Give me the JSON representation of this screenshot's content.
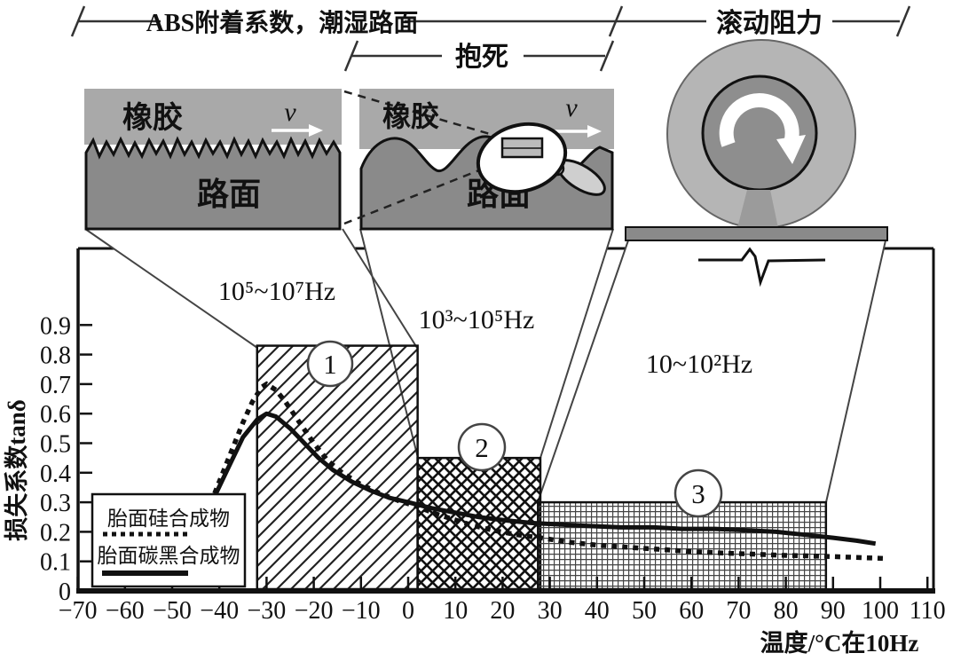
{
  "figure": {
    "brackets": {
      "abs_label": "ABS附着系数，潮湿路面",
      "lock_label": "抱死",
      "rolling_label": "滚动阻力"
    },
    "panel_left": {
      "rubber": "橡胶",
      "road": "路面",
      "velocity": "v"
    },
    "panel_middle": {
      "rubber": "橡胶",
      "road": "路面",
      "velocity": "v"
    },
    "legend": {
      "silica_label": "胎面硅合成物",
      "carbon_label": "胎面碳黑合成物"
    }
  },
  "chart_data": {
    "type": "line",
    "title": "",
    "xlabel": "温度/°C在10Hz",
    "ylabel": "损失系数tanδ",
    "xlim": [
      -70,
      110
    ],
    "ylim": [
      0,
      0.9
    ],
    "grid": false,
    "x_ticks": [
      -70,
      -60,
      -50,
      -40,
      -30,
      -20,
      -10,
      0,
      10,
      20,
      30,
      40,
      50,
      60,
      70,
      80,
      90,
      100,
      110
    ],
    "y_ticks": [
      0,
      0.1,
      0.2,
      0.3,
      0.4,
      0.5,
      0.6,
      0.7,
      0.8,
      0.9
    ],
    "regions": [
      {
        "label": "1",
        "freq": "10⁵~10⁷Hz",
        "temp_range": [
          -32,
          2
        ],
        "tan_delta_top": 0.83
      },
      {
        "label": "2",
        "freq": "10³~10⁵Hz",
        "temp_range": [
          2,
          28
        ],
        "tan_delta_top": 0.45
      },
      {
        "label": "3",
        "freq": "10~10²Hz",
        "temp_range": [
          27.5,
          88.5
        ],
        "tan_delta_top": 0.3
      }
    ],
    "series": [
      {
        "name": "胎面硅合成物",
        "style": "dotted",
        "points": [
          [
            -41,
            0.33
          ],
          [
            -38,
            0.45
          ],
          [
            -35,
            0.57
          ],
          [
            -33,
            0.64
          ],
          [
            -31,
            0.69
          ],
          [
            -30,
            0.7
          ],
          [
            -28,
            0.68
          ],
          [
            -26,
            0.64
          ],
          [
            -23,
            0.57
          ],
          [
            -20,
            0.5
          ],
          [
            -17,
            0.44
          ],
          [
            -14,
            0.4
          ],
          [
            -10,
            0.36
          ],
          [
            -6,
            0.33
          ],
          [
            -2,
            0.305
          ],
          [
            2,
            0.285
          ],
          [
            6,
            0.26
          ],
          [
            10,
            0.24
          ],
          [
            14,
            0.22
          ],
          [
            18,
            0.205
          ],
          [
            23,
            0.19
          ],
          [
            28,
            0.18
          ],
          [
            34,
            0.165
          ],
          [
            40,
            0.155
          ],
          [
            47,
            0.147
          ],
          [
            54,
            0.14
          ],
          [
            60,
            0.133
          ],
          [
            67,
            0.128
          ],
          [
            74,
            0.124
          ],
          [
            80,
            0.12
          ],
          [
            86,
            0.118
          ],
          [
            92,
            0.115
          ],
          [
            97,
            0.112
          ],
          [
            101,
            0.11
          ]
        ]
      },
      {
        "name": "胎面碳黑合成物",
        "style": "solid",
        "points": [
          [
            -41,
            0.32
          ],
          [
            -38,
            0.42
          ],
          [
            -35,
            0.52
          ],
          [
            -32,
            0.58
          ],
          [
            -30,
            0.6
          ],
          [
            -28,
            0.59
          ],
          [
            -25,
            0.55
          ],
          [
            -22,
            0.5
          ],
          [
            -19,
            0.45
          ],
          [
            -16,
            0.41
          ],
          [
            -12,
            0.37
          ],
          [
            -8,
            0.34
          ],
          [
            -4,
            0.315
          ],
          [
            0,
            0.3
          ],
          [
            5,
            0.28
          ],
          [
            10,
            0.265
          ],
          [
            15,
            0.25
          ],
          [
            20,
            0.24
          ],
          [
            26,
            0.23
          ],
          [
            32,
            0.225
          ],
          [
            38,
            0.22
          ],
          [
            45,
            0.215
          ],
          [
            52,
            0.215
          ],
          [
            58,
            0.21
          ],
          [
            65,
            0.21
          ],
          [
            72,
            0.205
          ],
          [
            78,
            0.2
          ],
          [
            84,
            0.19
          ],
          [
            90,
            0.18
          ],
          [
            95,
            0.17
          ],
          [
            99,
            0.16
          ]
        ]
      }
    ]
  }
}
